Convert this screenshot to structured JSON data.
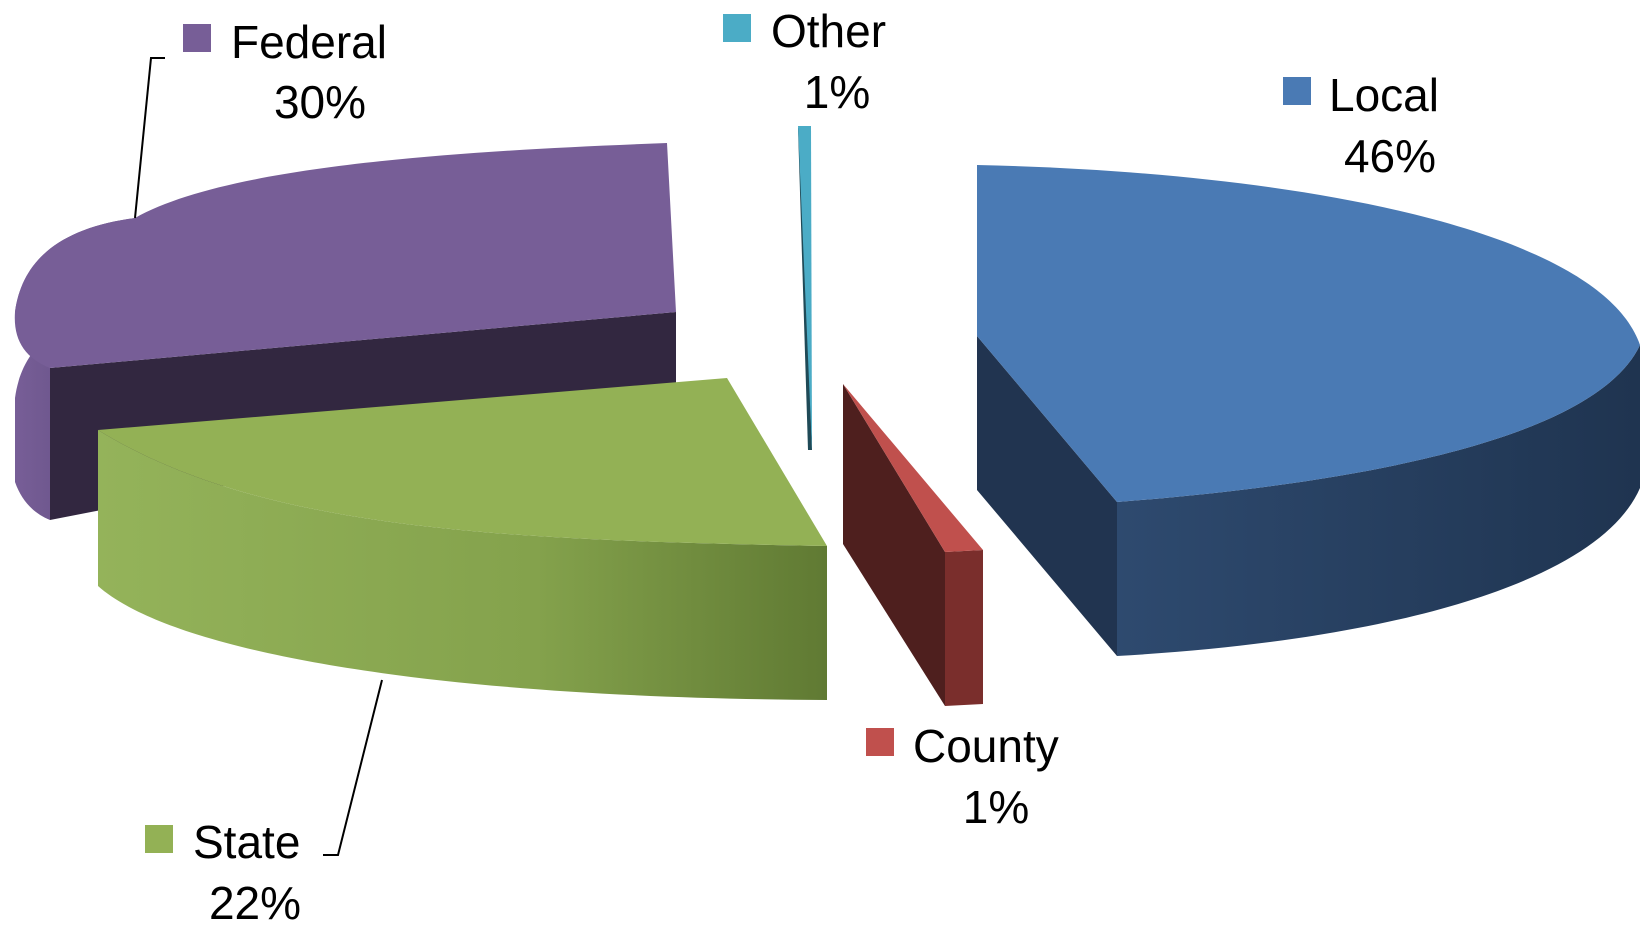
{
  "chart_data": {
    "type": "pie",
    "style": "3d-exploded",
    "slices": [
      {
        "name": "Local",
        "value": 46,
        "label": "46%",
        "color": "#4A7AB4"
      },
      {
        "name": "County",
        "value": 1,
        "label": "1%",
        "color": "#C0504D"
      },
      {
        "name": "State",
        "value": 22,
        "label": "22%",
        "color": "#93B155"
      },
      {
        "name": "Federal",
        "value": 30,
        "label": "30%",
        "color": "#775E97"
      },
      {
        "name": "Other",
        "value": 1,
        "label": "1%",
        "color": "#4BACC6"
      }
    ]
  }
}
